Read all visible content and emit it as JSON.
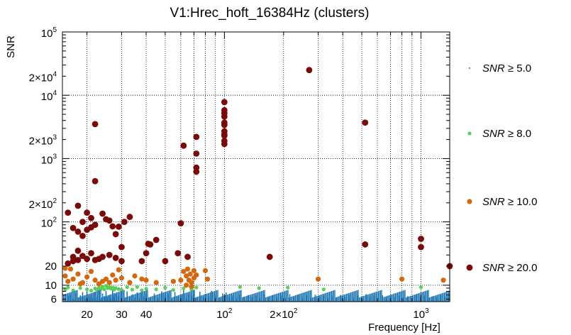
{
  "chart_data": {
    "type": "scatter",
    "title": "V1:Hrec_hoft_16384Hz (clusters)",
    "xlabel": "Frequency [Hz]",
    "ylabel": "SNR",
    "xscale": "log",
    "yscale": "log",
    "xlim": [
      15,
      1400
    ],
    "ylim": [
      5.5,
      100000
    ],
    "grid": true,
    "x_ticks": [
      {
        "value": 20,
        "label": "20"
      },
      {
        "value": 30,
        "label": "30"
      },
      {
        "value": 40,
        "label": "40"
      },
      {
        "value": 100,
        "label": "10",
        "sup": "2"
      },
      {
        "value": 200,
        "label": "2×10",
        "sup": "2"
      },
      {
        "value": 1000,
        "label": "10",
        "sup": "3"
      }
    ],
    "y_ticks": [
      {
        "value": 6,
        "label": "6"
      },
      {
        "value": 10,
        "label": "10"
      },
      {
        "value": 20,
        "label": "20"
      },
      {
        "value": 100,
        "label": "10",
        "sup": "2"
      },
      {
        "value": 200,
        "label": "2×10",
        "sup": "2"
      },
      {
        "value": 1000,
        "label": "10",
        "sup": "3"
      },
      {
        "value": 2000,
        "label": "2×10",
        "sup": "3"
      },
      {
        "value": 10000,
        "label": "10",
        "sup": "4"
      },
      {
        "value": 20000,
        "label": "2×10",
        "sup": "4"
      },
      {
        "value": 100000,
        "label": "10",
        "sup": "5"
      }
    ],
    "legend_position": "right",
    "series": [
      {
        "name": "SNR ≥ 5.0",
        "legend_prefix": "SNR",
        "legend_suffix": " ≥ 5.0",
        "color": "#1f77b4",
        "marker": "dot",
        "points": [
          [
            15.5,
            6.3
          ],
          [
            16,
            6.8
          ],
          [
            16.5,
            7.2
          ],
          [
            17,
            6.1
          ],
          [
            17.5,
            7.5
          ],
          [
            18,
            6.4
          ],
          [
            18.5,
            6.9
          ],
          [
            19,
            7.8
          ],
          [
            19.5,
            6.2
          ],
          [
            20,
            8.5
          ],
          [
            20.5,
            6.6
          ],
          [
            21,
            7.1
          ],
          [
            21.5,
            6.3
          ],
          [
            22,
            7.9
          ],
          [
            22.5,
            6.5
          ],
          [
            23,
            8.8
          ],
          [
            23.5,
            6.2
          ],
          [
            24,
            7.4
          ],
          [
            24.5,
            6.7
          ],
          [
            25,
            8.1
          ],
          [
            25.5,
            6.4
          ],
          [
            26,
            7.0
          ],
          [
            26.5,
            6.2
          ],
          [
            27,
            9.0
          ],
          [
            27.5,
            6.5
          ],
          [
            28,
            7.3
          ],
          [
            29,
            6.8
          ],
          [
            30,
            7.6
          ],
          [
            31,
            6.3
          ],
          [
            32,
            8.0
          ],
          [
            33,
            6.6
          ],
          [
            34,
            7.2
          ],
          [
            35,
            6.4
          ],
          [
            36,
            7.7
          ],
          [
            37,
            6.2
          ],
          [
            38,
            8.3
          ],
          [
            39,
            6.7
          ],
          [
            40,
            7.1
          ],
          [
            42,
            6.4
          ],
          [
            44,
            7.4
          ],
          [
            46,
            6.3
          ],
          [
            48,
            8.0
          ],
          [
            50,
            6.9
          ],
          [
            52,
            7.3
          ],
          [
            54,
            6.2
          ],
          [
            56,
            7.8
          ],
          [
            58,
            6.6
          ],
          [
            60,
            7.0
          ],
          [
            62,
            8.5
          ],
          [
            64,
            6.3
          ],
          [
            66,
            7.2
          ],
          [
            68,
            6.8
          ],
          [
            70,
            7.5
          ],
          [
            72,
            6.4
          ],
          [
            75,
            7.9
          ],
          [
            78,
            6.5
          ],
          [
            80,
            7.3
          ],
          [
            83,
            6.7
          ],
          [
            86,
            8.1
          ],
          [
            90,
            6.9
          ],
          [
            94,
            6.3
          ],
          [
            98,
            7.4
          ],
          [
            102,
            7.7
          ],
          [
            106,
            6.5
          ],
          [
            110,
            6.8
          ],
          [
            115,
            6.2
          ],
          [
            120,
            7.1
          ],
          [
            126,
            6.6
          ],
          [
            132,
            7.0
          ],
          [
            138,
            6.4
          ],
          [
            145,
            6.9
          ],
          [
            152,
            6.3
          ],
          [
            160,
            7.2
          ],
          [
            168,
            6.6
          ],
          [
            176,
            7.0
          ],
          [
            185,
            6.4
          ],
          [
            195,
            6.8
          ],
          [
            205,
            6.3
          ],
          [
            215,
            7.2
          ],
          [
            226,
            6.5
          ],
          [
            238,
            7.0
          ],
          [
            250,
            6.4
          ],
          [
            262,
            6.9
          ],
          [
            275,
            6.3
          ],
          [
            290,
            7.1
          ],
          [
            305,
            6.6
          ],
          [
            320,
            6.9
          ],
          [
            336,
            6.3
          ],
          [
            353,
            6.7
          ],
          [
            370,
            6.4
          ],
          [
            390,
            7.0
          ],
          [
            410,
            6.5
          ],
          [
            430,
            6.8
          ],
          [
            452,
            6.3
          ],
          [
            475,
            6.9
          ],
          [
            500,
            6.4
          ],
          [
            525,
            7.2
          ],
          [
            550,
            6.5
          ],
          [
            578,
            6.8
          ],
          [
            607,
            6.3
          ],
          [
            637,
            6.9
          ],
          [
            669,
            6.4
          ],
          [
            703,
            7.0
          ],
          [
            738,
            6.5
          ],
          [
            775,
            6.8
          ],
          [
            814,
            6.3
          ],
          [
            855,
            6.7
          ],
          [
            898,
            6.4
          ],
          [
            943,
            6.9
          ],
          [
            990,
            6.5
          ],
          [
            1040,
            6.8
          ],
          [
            1092,
            6.3
          ],
          [
            1147,
            6.7
          ],
          [
            1204,
            6.4
          ],
          [
            1264,
            6.9
          ],
          [
            1327,
            6.5
          ],
          [
            1380,
            6.6
          ]
        ]
      },
      {
        "name": "SNR ≥ 8.0",
        "legend_prefix": "SNR",
        "legend_suffix": " ≥ 8.0",
        "color": "#5cce5c",
        "marker": "circle-small",
        "points": [
          [
            15.5,
            8.5
          ],
          [
            16,
            9.2
          ],
          [
            17,
            8.3
          ],
          [
            18.5,
            9.0
          ],
          [
            20,
            8.6
          ],
          [
            21,
            8.2
          ],
          [
            22,
            8.9
          ],
          [
            22.5,
            8.4
          ],
          [
            23,
            9.1
          ],
          [
            23.5,
            8.7
          ],
          [
            24,
            9.5
          ],
          [
            24.5,
            8.6
          ],
          [
            25,
            9.8
          ],
          [
            25.5,
            9.0
          ],
          [
            26,
            9.4
          ],
          [
            26.5,
            8.8
          ],
          [
            27,
            9.2
          ],
          [
            27.5,
            8.5
          ],
          [
            28,
            9.0
          ],
          [
            29,
            8.7
          ],
          [
            30,
            8.4
          ],
          [
            32,
            9.3
          ],
          [
            34,
            8.5
          ],
          [
            36,
            9.4
          ],
          [
            38,
            8.3
          ],
          [
            40,
            8.8
          ],
          [
            45,
            8.6
          ],
          [
            50,
            9.1
          ],
          [
            55,
            8.4
          ],
          [
            62,
            8.9
          ],
          [
            68,
            8.5
          ],
          [
            72,
            9.2
          ],
          [
            120,
            9.4
          ],
          [
            150,
            9.0
          ],
          [
            210,
            9.2
          ],
          [
            320,
            8.6
          ],
          [
            1000,
            9.3
          ]
        ]
      },
      {
        "name": "SNR ≥ 10.0",
        "legend_prefix": "SNR",
        "legend_suffix": " ≥ 10.0",
        "color": "#d4680f",
        "marker": "circle-medium",
        "points": [
          [
            15.5,
            18.5
          ],
          [
            15.5,
            14
          ],
          [
            16,
            11.5
          ],
          [
            16.5,
            18
          ],
          [
            17,
            12.5
          ],
          [
            18,
            15
          ],
          [
            18.5,
            10.5
          ],
          [
            19,
            11
          ],
          [
            20,
            13.5
          ],
          [
            21,
            16.5
          ],
          [
            22,
            12
          ],
          [
            23,
            10.5
          ],
          [
            24,
            11.5
          ],
          [
            25,
            12.5
          ],
          [
            26,
            11
          ],
          [
            27,
            14.5
          ],
          [
            28,
            12
          ],
          [
            29,
            17.5
          ],
          [
            30,
            13
          ],
          [
            33,
            11
          ],
          [
            35,
            14
          ],
          [
            38,
            12.5
          ],
          [
            40,
            12
          ],
          [
            45,
            11
          ],
          [
            55,
            11.5
          ],
          [
            60,
            12
          ],
          [
            62,
            16.5
          ],
          [
            64,
            14
          ],
          [
            64,
            10
          ],
          [
            65,
            18
          ],
          [
            66,
            12
          ],
          [
            67,
            15
          ],
          [
            68,
            11
          ],
          [
            68,
            9.5
          ],
          [
            70,
            13
          ],
          [
            70,
            17
          ],
          [
            72,
            14.5
          ],
          [
            80,
            17
          ],
          [
            82,
            12.5
          ],
          [
            300,
            12.5
          ],
          [
            800,
            12.5
          ],
          [
            1300,
            12
          ]
        ]
      },
      {
        "name": "SNR ≥ 20.0",
        "legend_prefix": "SNR",
        "legend_suffix": " ≥ 20.0",
        "color": "#7a0a0a",
        "marker": "circle-large",
        "points": [
          [
            22,
            3500
          ],
          [
            22,
            440
          ],
          [
            20,
            140
          ],
          [
            18,
            180
          ],
          [
            21,
            115
          ],
          [
            16,
            140
          ],
          [
            19,
            100
          ],
          [
            17,
            80
          ],
          [
            18,
            70
          ],
          [
            19,
            60
          ],
          [
            20,
            75
          ],
          [
            21,
            82
          ],
          [
            22,
            90
          ],
          [
            24,
            135
          ],
          [
            25,
            110
          ],
          [
            26,
            105
          ],
          [
            27,
            85
          ],
          [
            28,
            64
          ],
          [
            29,
            84
          ],
          [
            30,
            40
          ],
          [
            18,
            35
          ],
          [
            17,
            28
          ],
          [
            16,
            22
          ],
          [
            17,
            24
          ],
          [
            18,
            25
          ],
          [
            19,
            29
          ],
          [
            20,
            26
          ],
          [
            21,
            32
          ],
          [
            22,
            25
          ],
          [
            23,
            26
          ],
          [
            24,
            28
          ],
          [
            26,
            30
          ],
          [
            28,
            27
          ],
          [
            30,
            24
          ],
          [
            31,
            100
          ],
          [
            33,
            120
          ],
          [
            38,
            24
          ],
          [
            40,
            32
          ],
          [
            41,
            45
          ],
          [
            42,
            44
          ],
          [
            45,
            52
          ],
          [
            50,
            24
          ],
          [
            58,
            32
          ],
          [
            60,
            95
          ],
          [
            65,
            28
          ],
          [
            62,
            1600
          ],
          [
            72,
            2200
          ],
          [
            72,
            1200
          ],
          [
            72,
            720
          ],
          [
            72,
            620
          ],
          [
            100,
            7800
          ],
          [
            100,
            5800
          ],
          [
            100,
            5200
          ],
          [
            100,
            4600
          ],
          [
            100,
            3700
          ],
          [
            100,
            3400
          ],
          [
            100,
            2700
          ],
          [
            100,
            2400
          ],
          [
            100,
            2300
          ],
          [
            100,
            1900
          ],
          [
            100,
            1700
          ],
          [
            170,
            28
          ],
          [
            270,
            25000
          ],
          [
            520,
            3700
          ],
          [
            520,
            44
          ],
          [
            1000,
            54
          ],
          [
            1000,
            40
          ],
          [
            1400,
            20
          ]
        ]
      }
    ]
  }
}
